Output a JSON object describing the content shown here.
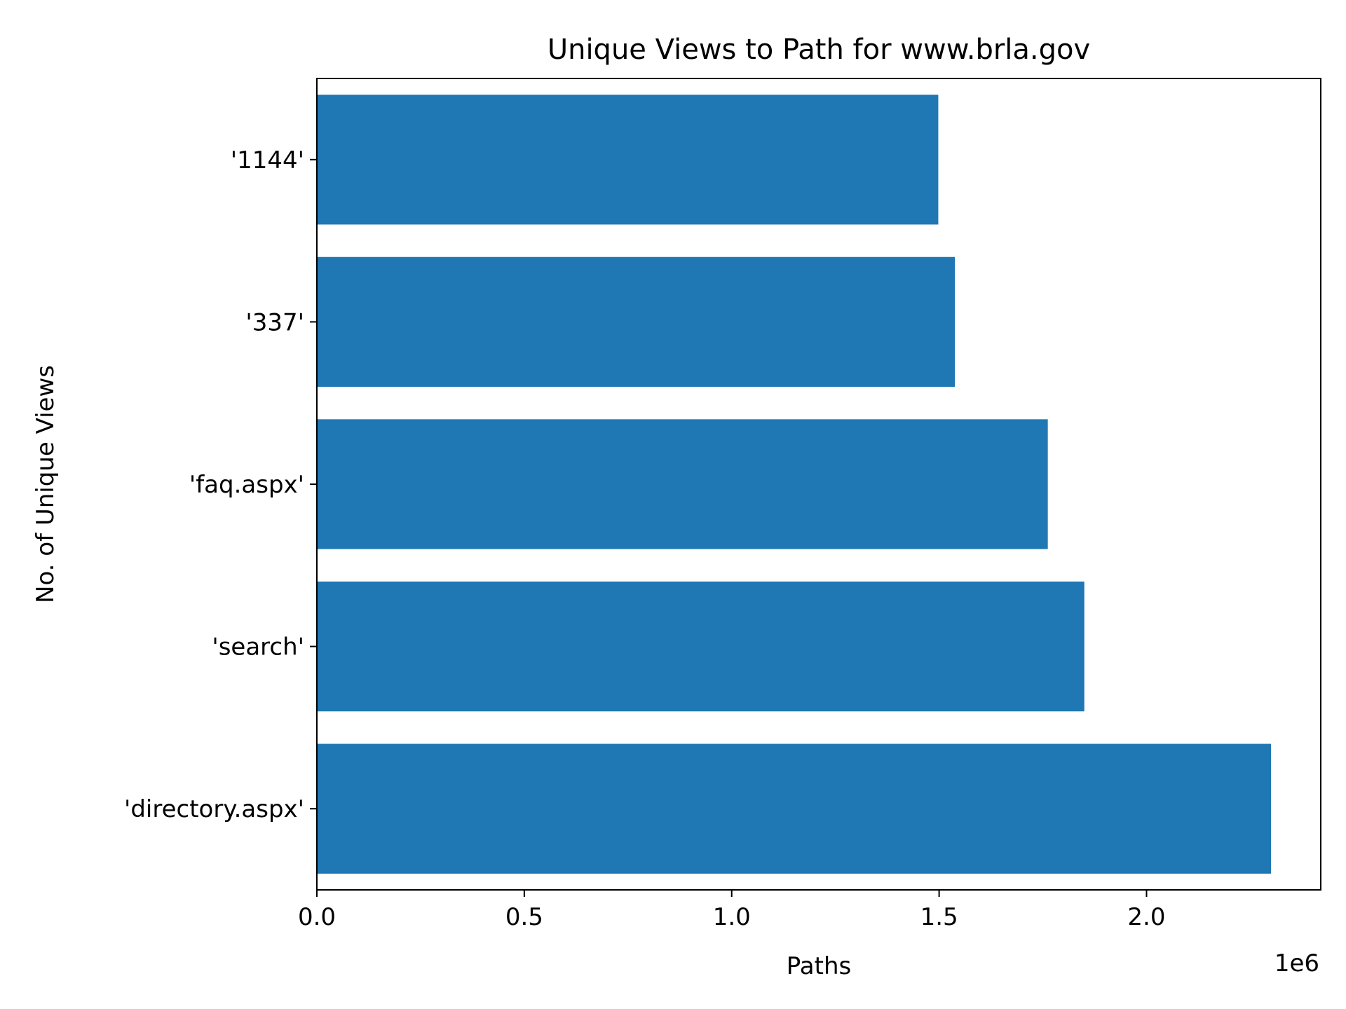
{
  "chart_data": {
    "type": "bar",
    "orientation": "horizontal",
    "title": "Unique Views to Path for www.brla.gov",
    "xlabel": "Paths",
    "ylabel": "No. of Unique Views",
    "x_offset_text": "1e6",
    "categories": [
      "'directory.aspx'",
      "'search'",
      "'faq.aspx'",
      "'337'",
      "'1144'"
    ],
    "values": [
      2300000,
      1850000,
      1762000,
      1538000,
      1498000
    ],
    "xlim": [
      0,
      2420000
    ],
    "xticks": [
      0,
      500000,
      1000000,
      1500000,
      2000000
    ],
    "xtick_labels": [
      "0.0",
      "0.5",
      "1.0",
      "1.5",
      "2.0"
    ],
    "bar_color": "#1f77b4",
    "grid": false,
    "legend": "none"
  }
}
